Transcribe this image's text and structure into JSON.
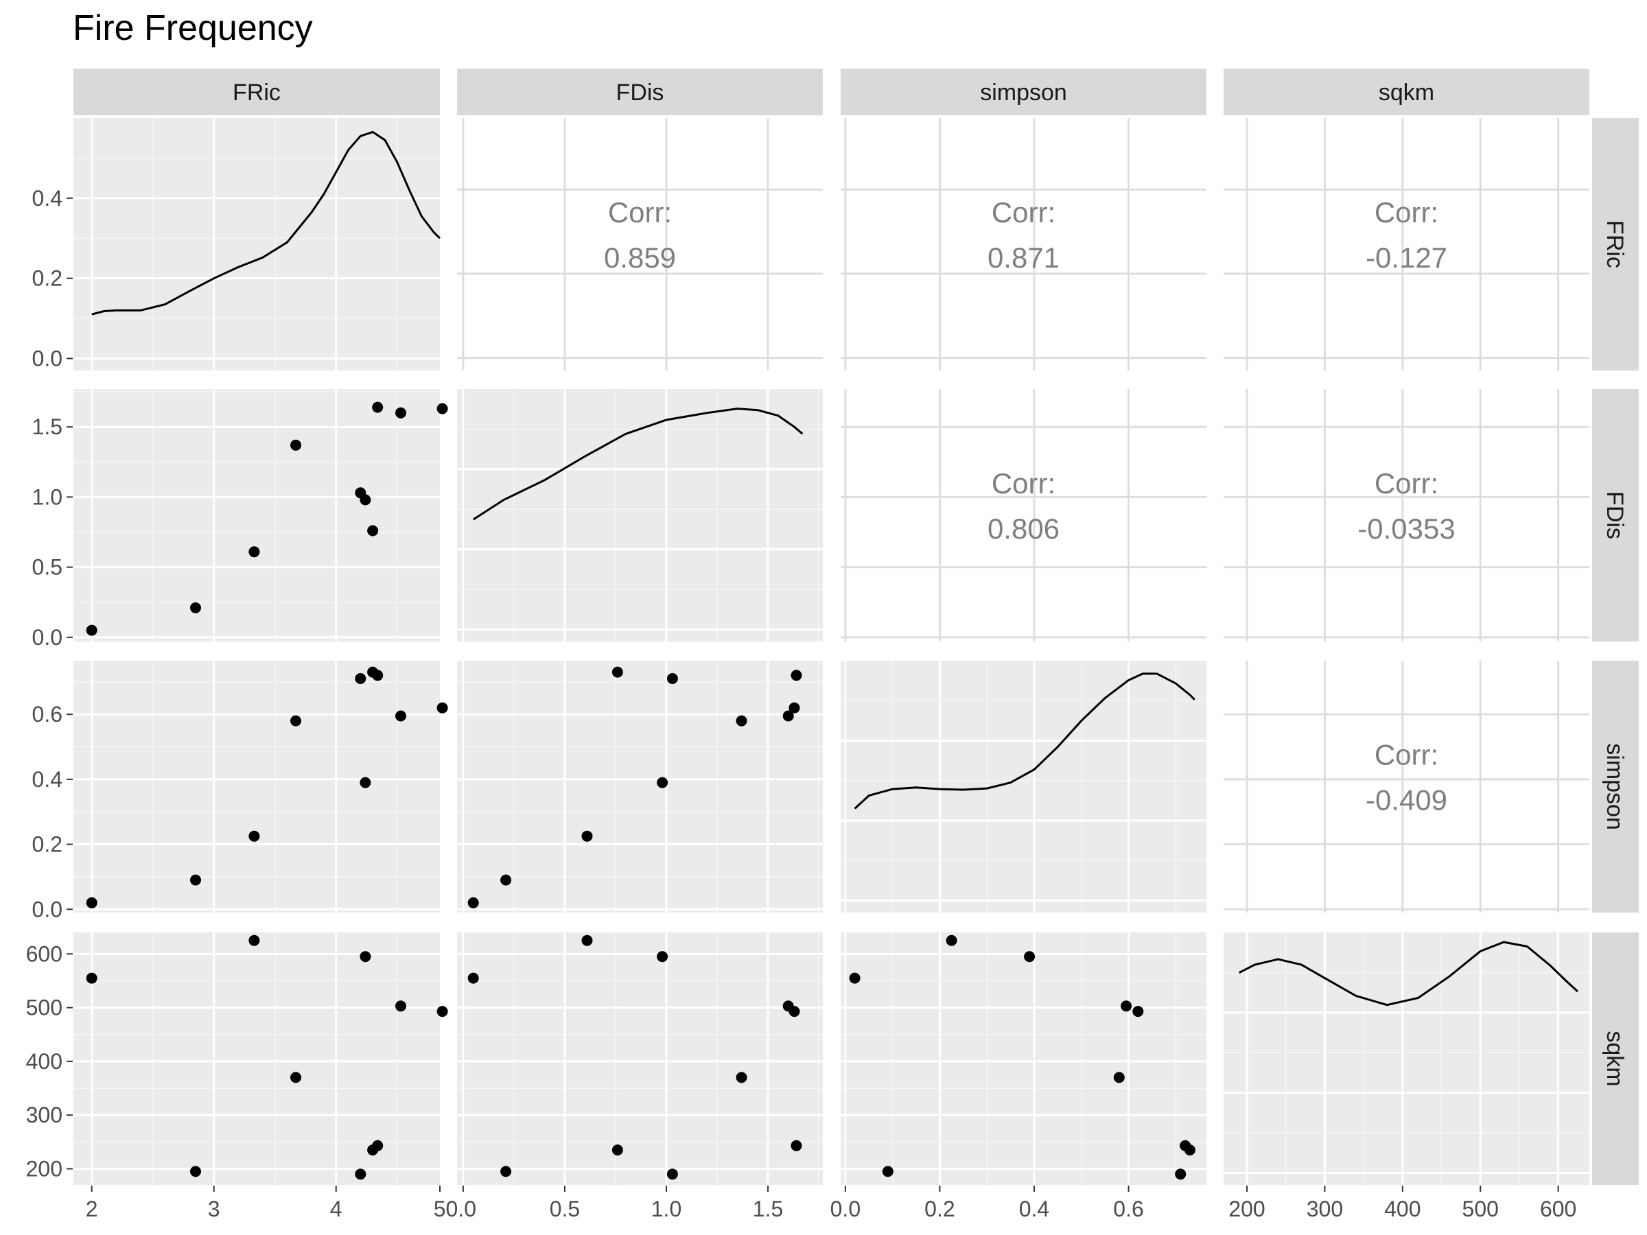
{
  "chart_data": {
    "type": "scatter",
    "title": "Fire Frequency",
    "variables": [
      "FRic",
      "FDis",
      "simpson",
      "sqkm"
    ],
    "axes": {
      "FRic": {
        "range": [
          1.85,
          4.85
        ],
        "ticks": [
          2,
          3,
          4
        ],
        "tick_labels": [
          "2",
          "3",
          "4"
        ]
      },
      "FDis": {
        "range": [
          -0.03,
          1.77
        ],
        "ticks": [
          0.0,
          0.5,
          1.0,
          1.5
        ],
        "tick_labels": [
          "0.0",
          "0.5",
          "1.0",
          "1.5"
        ]
      },
      "simpson": {
        "range": [
          -0.01,
          0.765
        ],
        "ticks": [
          0.0,
          0.2,
          0.4,
          0.6
        ],
        "tick_labels": [
          "0.0",
          "0.2",
          "0.4",
          "0.6"
        ]
      },
      "sqkm": {
        "range": [
          170,
          640
        ],
        "ticks": [
          200,
          300,
          400,
          500,
          600
        ],
        "tick_labels": [
          "200",
          "300",
          "400",
          "500",
          "600"
        ]
      }
    },
    "corner_tick_label": "50.0",
    "density_axis": {
      "range": [
        -0.03,
        0.6
      ],
      "ticks": [
        0.0,
        0.2,
        0.4
      ],
      "tick_labels": [
        "0.0",
        "0.2",
        "0.4"
      ]
    },
    "observations": {
      "FRic": [
        2.0,
        2.85,
        3.33,
        3.67,
        4.2,
        4.24,
        4.3,
        4.34,
        4.53,
        4.87
      ],
      "FDis": [
        0.05,
        0.21,
        0.61,
        1.37,
        1.03,
        0.98,
        0.76,
        1.64,
        1.6,
        1.63
      ],
      "simpson": [
        0.02,
        0.09,
        0.225,
        0.58,
        0.71,
        0.39,
        0.73,
        0.72,
        0.595,
        0.62
      ],
      "sqkm": [
        555,
        195,
        625,
        370,
        190,
        595,
        235,
        243,
        503,
        493
      ]
    },
    "densities": [
      {
        "variable": "FRic",
        "x": [
          2.0,
          2.1,
          2.2,
          2.4,
          2.6,
          2.8,
          3.0,
          3.2,
          3.4,
          3.6,
          3.8,
          3.9,
          4.0,
          4.1,
          4.2,
          4.3,
          4.4,
          4.5,
          4.6,
          4.7,
          4.8,
          4.85
        ],
        "y": [
          0.11,
          0.118,
          0.12,
          0.12,
          0.135,
          0.168,
          0.2,
          0.228,
          0.252,
          0.29,
          0.365,
          0.41,
          0.465,
          0.52,
          0.555,
          0.565,
          0.545,
          0.49,
          0.42,
          0.355,
          0.315,
          0.3
        ]
      },
      {
        "variable": "FDis",
        "x": [
          0.05,
          0.2,
          0.4,
          0.6,
          0.8,
          1.0,
          1.2,
          1.35,
          1.45,
          1.55,
          1.63,
          1.67
        ],
        "y": [
          0.84,
          0.98,
          1.12,
          1.29,
          1.45,
          1.55,
          1.6,
          1.63,
          1.62,
          1.58,
          1.5,
          1.45
        ]
      },
      {
        "variable": "simpson",
        "x": [
          0.02,
          0.05,
          0.1,
          0.15,
          0.2,
          0.25,
          0.3,
          0.35,
          0.4,
          0.45,
          0.5,
          0.55,
          0.6,
          0.63,
          0.66,
          0.7,
          0.73,
          0.74
        ],
        "y": [
          0.31,
          0.35,
          0.37,
          0.375,
          0.37,
          0.368,
          0.372,
          0.39,
          0.43,
          0.5,
          0.58,
          0.65,
          0.705,
          0.725,
          0.725,
          0.695,
          0.66,
          0.645
        ]
      },
      {
        "variable": "sqkm",
        "x": [
          190,
          210,
          240,
          270,
          300,
          340,
          380,
          420,
          460,
          500,
          530,
          560,
          590,
          610,
          625
        ],
        "y": [
          565,
          580,
          590,
          580,
          555,
          522,
          505,
          518,
          558,
          605,
          622,
          614,
          578,
          550,
          530
        ]
      }
    ],
    "correlations": [
      {
        "row": "FRic",
        "col": "FDis",
        "label": "Corr:",
        "value": "0.859"
      },
      {
        "row": "FRic",
        "col": "simpson",
        "label": "Corr:",
        "value": "0.871"
      },
      {
        "row": "FRic",
        "col": "sqkm",
        "label": "Corr:",
        "value": "-0.127"
      },
      {
        "row": "FDis",
        "col": "simpson",
        "label": "Corr:",
        "value": "0.806"
      },
      {
        "row": "FDis",
        "col": "sqkm",
        "label": "Corr:",
        "value": "-0.0353"
      },
      {
        "row": "simpson",
        "col": "sqkm",
        "label": "Corr:",
        "value": "-0.409"
      }
    ],
    "grid": true,
    "colors": {
      "panel_background": "#ebebeb",
      "strip_background": "#d9d9d9",
      "grid_major": "#ffffff",
      "grid_minor": "#f5f5f5",
      "points": "#000000",
      "corr_text": "#7f7f7f",
      "tick_text": "#4d4d4d"
    }
  }
}
